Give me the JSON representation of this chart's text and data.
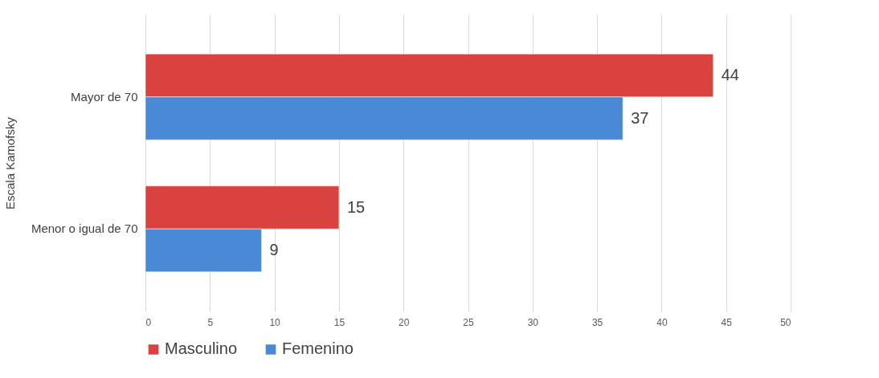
{
  "chart_data": {
    "type": "bar",
    "orientation": "horizontal",
    "ylabel": "Escala Kamofsky",
    "categories": [
      "Mayor de 70",
      "Menor  o igual de 70"
    ],
    "series": [
      {
        "name": "Masculino",
        "color": "#d9423f",
        "values": [
          44,
          15
        ]
      },
      {
        "name": "Femenino",
        "color": "#4a89d6",
        "values": [
          37,
          9
        ]
      }
    ],
    "xlim": [
      0,
      50
    ],
    "xticks": [
      0,
      5,
      10,
      15,
      20,
      25,
      30,
      35,
      40,
      45,
      50
    ],
    "grid": "x",
    "legend": "bottom",
    "data_labels": true
  }
}
